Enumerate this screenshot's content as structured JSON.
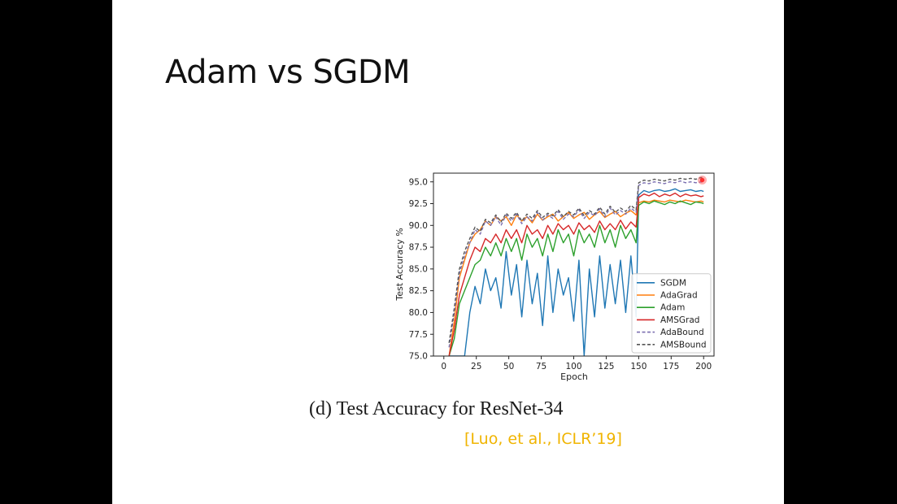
{
  "slide": {
    "title": "Adam vs SGDM",
    "caption": "(d) Test Accuracy for ResNet-34",
    "citation": "[Luo, et al., ICLR’19]",
    "citation_color": "#f0b400"
  },
  "chart_data": {
    "type": "line",
    "xlabel": "Epoch",
    "ylabel": "Test Accuracy %",
    "xlim": [
      -8,
      208
    ],
    "ylim": [
      75,
      96
    ],
    "xticks": [
      "0",
      "25",
      "50",
      "75",
      "100",
      "125",
      "150",
      "175",
      "200"
    ],
    "yticks": [
      "75.0",
      "77.5",
      "80.0",
      "82.5",
      "85.0",
      "87.5",
      "90.0",
      "92.5",
      "95.0"
    ],
    "legend_position": "bottom-right",
    "grid": false,
    "series": [
      {
        "name": "SGDM",
        "color": "#1f77b4",
        "dashed": false,
        "x": [
          4,
          8,
          12,
          16,
          20,
          24,
          28,
          32,
          36,
          40,
          44,
          48,
          52,
          56,
          60,
          64,
          68,
          72,
          76,
          80,
          84,
          88,
          92,
          96,
          100,
          104,
          108,
          112,
          116,
          120,
          124,
          128,
          132,
          136,
          140,
          144,
          148,
          150,
          154,
          158,
          162,
          166,
          170,
          174,
          178,
          182,
          186,
          190,
          194,
          198,
          200
        ],
        "y": [
          74,
          74,
          74.5,
          75,
          80,
          83,
          81,
          85,
          82.5,
          84,
          80.5,
          87,
          82,
          85.5,
          79.5,
          86,
          81,
          84.5,
          78.5,
          86.5,
          80,
          85,
          82,
          84,
          79,
          86,
          74,
          85,
          79.5,
          86.5,
          80.5,
          85.5,
          81,
          86,
          80,
          86.5,
          79.5,
          93.5,
          94,
          93.8,
          94,
          94.1,
          93.9,
          94,
          94.2,
          93.9,
          94,
          94.1,
          93.9,
          94,
          93.9
        ]
      },
      {
        "name": "AdaGrad",
        "color": "#ff7f0e",
        "dashed": false,
        "x": [
          4,
          8,
          12,
          16,
          20,
          24,
          28,
          32,
          36,
          40,
          44,
          48,
          52,
          56,
          60,
          64,
          68,
          72,
          76,
          80,
          84,
          88,
          92,
          96,
          100,
          104,
          108,
          112,
          116,
          120,
          124,
          128,
          132,
          136,
          140,
          144,
          148,
          150,
          154,
          158,
          162,
          166,
          170,
          174,
          178,
          182,
          186,
          190,
          194,
          198,
          200
        ],
        "y": [
          75,
          79,
          84,
          86,
          88,
          89,
          89.5,
          90.5,
          90,
          91,
          90.5,
          91,
          90,
          91.2,
          90.5,
          91,
          90.3,
          91.3,
          90.6,
          91,
          91.3,
          90.5,
          91,
          91.5,
          90.8,
          91.2,
          91.5,
          90.7,
          91.2,
          91.6,
          90.9,
          91.3,
          91.6,
          91,
          91.4,
          91.7,
          91.2,
          92.6,
          92.8,
          92.7,
          92.9,
          92.8,
          92.7,
          92.9,
          92.8,
          92.7,
          92.9,
          92.8,
          92.7,
          92.8,
          92.7
        ]
      },
      {
        "name": "Adam",
        "color": "#2ca02c",
        "dashed": false,
        "x": [
          4,
          8,
          12,
          16,
          20,
          24,
          28,
          32,
          36,
          40,
          44,
          48,
          52,
          56,
          60,
          64,
          68,
          72,
          76,
          80,
          84,
          88,
          92,
          96,
          100,
          104,
          108,
          112,
          116,
          120,
          124,
          128,
          132,
          136,
          140,
          144,
          148,
          150,
          154,
          158,
          162,
          166,
          170,
          174,
          178,
          182,
          186,
          190,
          194,
          198,
          200
        ],
        "y": [
          74,
          77,
          81,
          82.5,
          84,
          85.5,
          86,
          87.5,
          86.5,
          88,
          86.5,
          88.5,
          87,
          88.5,
          86,
          89,
          87.5,
          88.5,
          86.5,
          89,
          87,
          89.5,
          88,
          89,
          86.5,
          89.5,
          88,
          89,
          87.5,
          90,
          88,
          89.5,
          87.5,
          90,
          88.5,
          89.5,
          88,
          92.3,
          92.7,
          92.5,
          92.8,
          92.6,
          92.4,
          92.7,
          92.5,
          92.8,
          92.6,
          92.4,
          92.7,
          92.6,
          92.5
        ]
      },
      {
        "name": "AMSGrad",
        "color": "#d62728",
        "dashed": false,
        "x": [
          4,
          8,
          12,
          16,
          20,
          24,
          28,
          32,
          36,
          40,
          44,
          48,
          52,
          56,
          60,
          64,
          68,
          72,
          76,
          80,
          84,
          88,
          92,
          96,
          100,
          104,
          108,
          112,
          116,
          120,
          124,
          128,
          132,
          136,
          140,
          144,
          148,
          150,
          154,
          158,
          162,
          166,
          170,
          174,
          178,
          182,
          186,
          190,
          194,
          198,
          200
        ],
        "y": [
          75,
          78,
          82,
          84,
          86,
          87.5,
          87,
          88.5,
          88,
          89,
          88,
          89.5,
          88.5,
          89.5,
          88,
          90,
          89,
          89.5,
          88.5,
          90,
          89,
          90.2,
          89.5,
          90,
          89,
          90.3,
          89.5,
          90,
          89.2,
          90.5,
          89.5,
          90.2,
          89.5,
          90.6,
          89.6,
          90.4,
          89.8,
          93.2,
          93.6,
          93.4,
          93.7,
          93.3,
          93.6,
          93.4,
          93.7,
          93.3,
          93.6,
          93.4,
          93.5,
          93.3,
          93.4
        ]
      },
      {
        "name": "AdaBound",
        "color": "#7b6fb0",
        "dashed": true,
        "x": [
          4,
          8,
          12,
          16,
          20,
          24,
          28,
          32,
          36,
          40,
          44,
          48,
          52,
          56,
          60,
          64,
          68,
          72,
          76,
          80,
          84,
          88,
          92,
          96,
          100,
          104,
          108,
          112,
          116,
          120,
          124,
          128,
          132,
          136,
          140,
          144,
          148,
          150,
          154,
          158,
          162,
          166,
          170,
          174,
          178,
          182,
          186,
          190,
          194,
          198,
          200
        ],
        "y": [
          76,
          80,
          84.5,
          86.5,
          88,
          89.5,
          89,
          90.5,
          90,
          91,
          90,
          91.2,
          90.5,
          91.3,
          90.2,
          91,
          90.5,
          91.5,
          90.6,
          91.2,
          90.8,
          91.6,
          90.7,
          91.3,
          91,
          91.8,
          90.8,
          91.5,
          91.1,
          91.9,
          91,
          92,
          91.2,
          91.7,
          91.3,
          92,
          91.5,
          94.6,
          94.9,
          94.8,
          95,
          94.9,
          94.8,
          95,
          94.9,
          95.1,
          94.9,
          95,
          94.9,
          95,
          94.9
        ]
      },
      {
        "name": "AMSBound",
        "color": "#555555",
        "dashed": true,
        "x": [
          4,
          8,
          12,
          16,
          20,
          24,
          28,
          32,
          36,
          40,
          44,
          48,
          52,
          56,
          60,
          64,
          68,
          72,
          76,
          80,
          84,
          88,
          92,
          96,
          100,
          104,
          108,
          112,
          116,
          120,
          124,
          128,
          132,
          136,
          140,
          144,
          148,
          150,
          154,
          158,
          162,
          166,
          170,
          174,
          178,
          182,
          186,
          190,
          194,
          198,
          200
        ],
        "y": [
          76.5,
          80.5,
          85,
          87,
          88.5,
          89.8,
          89.3,
          90.7,
          90.3,
          91.2,
          90.4,
          91.4,
          90.8,
          91.5,
          90.5,
          91.3,
          90.8,
          91.7,
          90.9,
          91.4,
          91.1,
          91.8,
          91,
          91.6,
          91.2,
          92,
          91.1,
          91.7,
          91.3,
          92.1,
          91.3,
          92.2,
          91.5,
          92,
          91.6,
          92.3,
          91.8,
          94.9,
          95.2,
          95.1,
          95.3,
          95.2,
          95.1,
          95.3,
          95.2,
          95.4,
          95.3,
          95.4,
          95.3,
          95.5,
          95.5
        ]
      }
    ]
  }
}
